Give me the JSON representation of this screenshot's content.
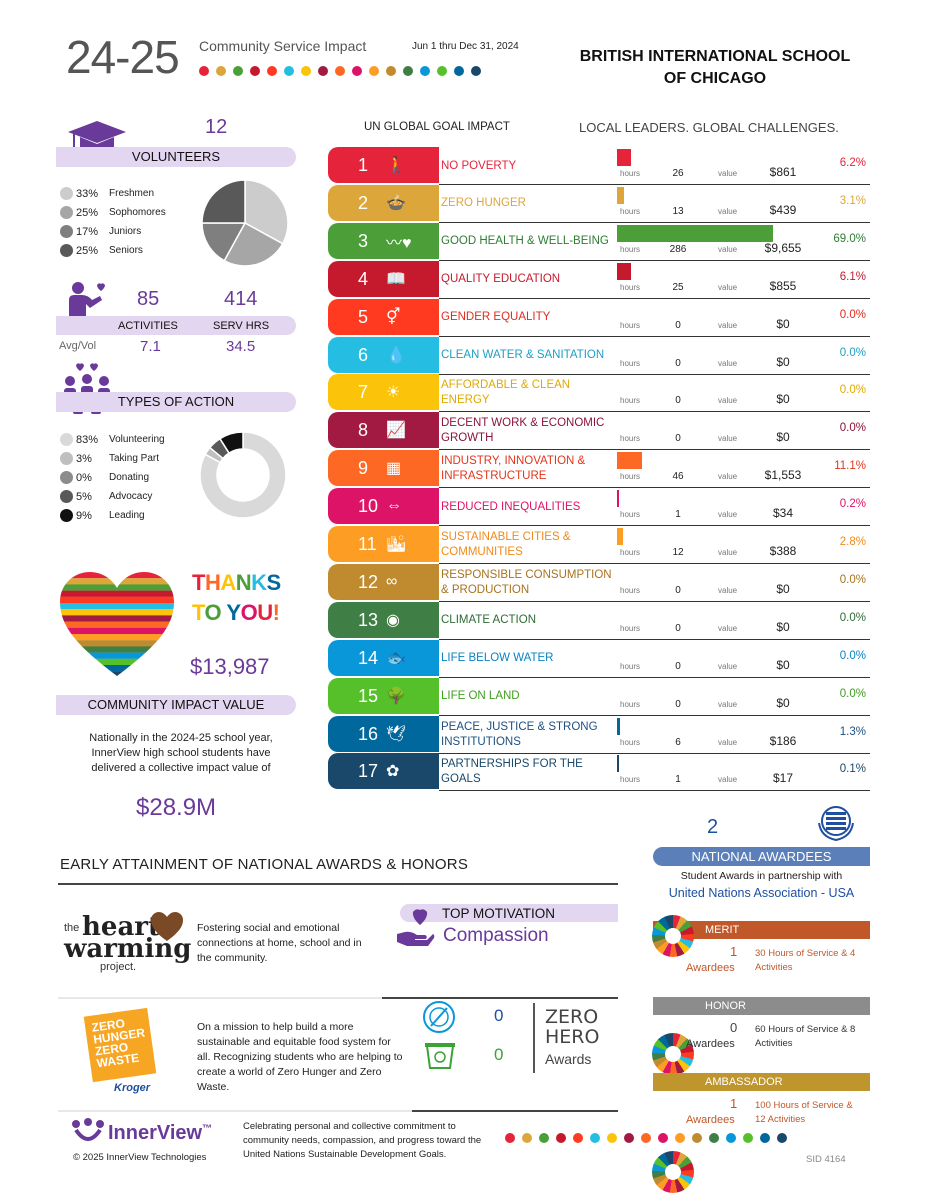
{
  "header": {
    "year": "24-25",
    "subtitle": "Community Service Impact",
    "date_range": "Jun 1  thru Dec 31, 2024",
    "school_line1": "BRITISH INTERNATIONAL SCHOOL",
    "school_line2": "OF CHICAGO"
  },
  "volunteers": {
    "count": "12",
    "label": "VOLUNTEERS",
    "breakdown": [
      {
        "pct": "33%",
        "label": "Freshmen",
        "color": "#cccccc",
        "value": 33
      },
      {
        "pct": "25%",
        "label": "Sophomores",
        "color": "#a6a6a6",
        "value": 25
      },
      {
        "pct": "17%",
        "label": "Juniors",
        "color": "#7f7f7f",
        "value": 17
      },
      {
        "pct": "25%",
        "label": "Seniors",
        "color": "#595959",
        "value": 25
      }
    ]
  },
  "activity_stats": {
    "activities": "85",
    "serv_hrs": "414",
    "activities_label": "ACTIVITIES",
    "serv_hrs_label": "SERV HRS",
    "avg_label": "Avg/Vol",
    "avg_activities": "7.1",
    "avg_hours": "34.5"
  },
  "types_of_action": {
    "label": "TYPES OF ACTION",
    "items": [
      {
        "pct": "83%",
        "label": "Volunteering",
        "color": "#d9d9d9",
        "value": 83
      },
      {
        "pct": "3%",
        "label": "Taking Part",
        "color": "#bfbfbf",
        "value": 3
      },
      {
        "pct": "0%",
        "label": "Donating",
        "color": "#8c8c8c",
        "value": 0
      },
      {
        "pct": "5%",
        "label": "Advocacy",
        "color": "#595959",
        "value": 5
      },
      {
        "pct": "9%",
        "label": "Leading",
        "color": "#111111",
        "value": 9
      }
    ]
  },
  "thanks": {
    "line1": "THANKS",
    "line2": "TO YOU!",
    "amount": "$13,987",
    "label": "COMMUNITY IMPACT VALUE",
    "national_text": "Nationally in the 2024-25 school year, InnerView high school students have delivered a collective impact value of",
    "national_amount": "$28.9M"
  },
  "sdg_header": {
    "left": "UN GLOBAL GOAL IMPACT",
    "right": "LOCAL LEADERS.  GLOBAL CHALLENGES."
  },
  "sdg_labels": {
    "hours": "hours",
    "value": "value"
  },
  "sdgs": [
    {
      "num": "1",
      "name": "NO POVERTY",
      "color": "#e5243b",
      "text_color": "#e5243b",
      "hours": "26",
      "value": "$861",
      "pct": "6.2%",
      "pct_value": 6.2,
      "icon": "🚶"
    },
    {
      "num": "2",
      "name": "ZERO HUNGER",
      "color": "#dda63a",
      "text_color": "#dda63a",
      "hours": "13",
      "value": "$439",
      "pct": "3.1%",
      "pct_value": 3.1,
      "icon": "🍲"
    },
    {
      "num": "3",
      "name": "GOOD HEALTH & WELL-BEING",
      "color": "#4c9f38",
      "text_color": "#2e7d32",
      "hours": "286",
      "value": "$9,655",
      "pct": "69.0%",
      "pct_value": 69.0,
      "icon": "〰♥"
    },
    {
      "num": "4",
      "name": "QUALITY EDUCATION",
      "color": "#c5192d",
      "text_color": "#c5192d",
      "hours": "25",
      "value": "$855",
      "pct": "6.1%",
      "pct_value": 6.1,
      "icon": "📖"
    },
    {
      "num": "5",
      "name": "GENDER EQUALITY",
      "color": "#ff3a21",
      "text_color": "#e22b1c",
      "hours": "0",
      "value": "$0",
      "pct": "0.0%",
      "pct_value": 0,
      "icon": "⚥"
    },
    {
      "num": "6",
      "name": "CLEAN WATER & SANITATION",
      "color": "#26bde2",
      "text_color": "#1e9ec4",
      "hours": "0",
      "value": "$0",
      "pct": "0.0%",
      "pct_value": 0,
      "icon": "💧"
    },
    {
      "num": "7",
      "name": "AFFORDABLE & CLEAN ENERGY",
      "color": "#fcc30b",
      "text_color": "#e0a800",
      "hours": "0",
      "value": "$0",
      "pct": "0.0%",
      "pct_value": 0,
      "icon": "☀"
    },
    {
      "num": "8",
      "name": "DECENT WORK & ECONOMIC GROWTH",
      "color": "#a21942",
      "text_color": "#8a1538",
      "hours": "0",
      "value": "$0",
      "pct": "0.0%",
      "pct_value": 0,
      "icon": "📈"
    },
    {
      "num": "9",
      "name": "INDUSTRY, INNOVATION & INFRASTRUCTURE",
      "color": "#fd6925",
      "text_color": "#e2361c",
      "hours": "46",
      "value": "$1,553",
      "pct": "11.1%",
      "pct_value": 11.1,
      "icon": "▦"
    },
    {
      "num": "10",
      "name": "REDUCED INEQUALITIES",
      "color": "#dd1367",
      "text_color": "#dd1367",
      "hours": "1",
      "value": "$34",
      "pct": "0.2%",
      "pct_value": 0.2,
      "icon": "⇔"
    },
    {
      "num": "11",
      "name": "SUSTAINABLE CITIES & COMMUNITIES",
      "color": "#fd9d24",
      "text_color": "#f08a1c",
      "hours": "12",
      "value": "$388",
      "pct": "2.8%",
      "pct_value": 2.8,
      "icon": "🏙"
    },
    {
      "num": "12",
      "name": "RESPONSIBLE CONSUMPTION & PRODUCTION",
      "color": "#bf8b2e",
      "text_color": "#a7731e",
      "hours": "0",
      "value": "$0",
      "pct": "0.0%",
      "pct_value": 0,
      "icon": "∞"
    },
    {
      "num": "13",
      "name": "CLIMATE ACTION",
      "color": "#3f7e44",
      "text_color": "#2f6b35",
      "hours": "0",
      "value": "$0",
      "pct": "0.0%",
      "pct_value": 0,
      "icon": "◉"
    },
    {
      "num": "14",
      "name": "LIFE BELOW WATER",
      "color": "#0a97d9",
      "text_color": "#0a83c2",
      "hours": "0",
      "value": "$0",
      "pct": "0.0%",
      "pct_value": 0,
      "icon": "🐟"
    },
    {
      "num": "15",
      "name": "LIFE ON LAND",
      "color": "#56c02b",
      "text_color": "#3f9d1f",
      "hours": "0",
      "value": "$0",
      "pct": "0.0%",
      "pct_value": 0,
      "icon": "🌳"
    },
    {
      "num": "16",
      "name": "PEACE, JUSTICE & STRONG INSTITUTIONS",
      "color": "#00689d",
      "text_color": "#1d4f80",
      "hours": "6",
      "value": "$186",
      "pct": "1.3%",
      "pct_value": 1.3,
      "icon": "🕊"
    },
    {
      "num": "17",
      "name": "PARTNERSHIPS FOR THE GOALS",
      "color": "#19486a",
      "text_color": "#19486a",
      "hours": "1",
      "value": "$17",
      "pct": "0.1%",
      "pct_value": 0.1,
      "icon": "✿"
    }
  ],
  "awards_section": {
    "title": "EARLY ATTAINMENT OF NATIONAL AWARDS & HONORS",
    "heartwarming_logo_line1": "the",
    "heartwarming_logo_line2": "heart",
    "heartwarming_logo_line3": "warming",
    "heartwarming_logo_line4": "project.",
    "heartwarming_text": "Fostering social and emotional connections at home, school and in the community.",
    "top_motivation_label": "TOP MOTIVATION",
    "top_motivation_value": "Compassion",
    "kroger_text": "On a mission to help build a more sustainable and equitable food system for all. Recognizing students who are helping to create a world of Zero Hunger and Zero Waste.",
    "kroger_logo_line1": "ZERO",
    "kroger_logo_line2": "HUNGER",
    "kroger_logo_line3": "ZERO",
    "kroger_logo_line4": "WASTE",
    "kroger_brand": "Kroger",
    "zero_hunger_count": "0",
    "zero_waste_count": "0",
    "zero_hero_line1": "ZERO",
    "zero_hero_line2": "HERO",
    "zero_hero_line3": "Awards"
  },
  "national": {
    "count": "2",
    "label": "NATIONAL AWARDEES",
    "partner_text": "Student Awards in partnership with",
    "partner_name": "United Nations Association - USA",
    "awardees_label": "Awardees",
    "tiers": [
      {
        "name": "MERIT",
        "count": "1",
        "desc": "30 Hours of Service & 4 Activities",
        "color": "#c0582a"
      },
      {
        "name": "HONOR",
        "count": "0",
        "desc": "60 Hours of Service & 8 Activities",
        "color": "#8c8c8c"
      },
      {
        "name": "AMBASSADOR",
        "count": "1",
        "desc": "100 Hours of Service & 12 Activities",
        "color": "#bf962e"
      }
    ]
  },
  "footer": {
    "brand": "InnerView",
    "tm": "™",
    "copyright": "© 2025 InnerView Technologies",
    "text": "Celebrating personal and collective commitment to community needs, compassion, and progress toward the United Nations Sustainable Development Goals.",
    "sid": "SID 4164"
  },
  "dot_colors": [
    "#e5243b",
    "#dda63a",
    "#4c9f38",
    "#c5192d",
    "#ff3a21",
    "#26bde2",
    "#fcc30b",
    "#a21942",
    "#fd6925",
    "#dd1367",
    "#fd9d24",
    "#bf8b2e",
    "#3f7e44",
    "#0a97d9",
    "#56c02b",
    "#00689d",
    "#19486a"
  ]
}
